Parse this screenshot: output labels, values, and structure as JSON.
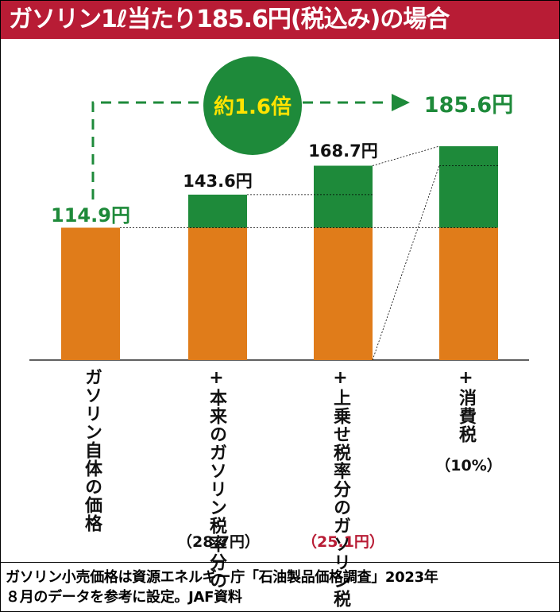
{
  "header": {
    "title": "ガソリン1ℓ当たり185.6円(税込み)の場合"
  },
  "chart_data": {
    "type": "bar",
    "stacked": true,
    "categories": [
      "ガソリン自体の価格",
      "+本来のガソリン税率分の",
      "+上乗せ税率分のガソリン税",
      "+消費税"
    ],
    "category_notes": [
      "",
      "（28.7円）",
      "（25.1円）",
      "（10%）"
    ],
    "totals": [
      114.9,
      143.6,
      168.7,
      185.6
    ],
    "total_labels": [
      "114.9円",
      "143.6円",
      "168.7円",
      "185.6円"
    ],
    "series": [
      {
        "values": [
          114.9,
          114.9,
          114.9,
          114.9
        ]
      },
      {
        "values": [
          0,
          28.7,
          53.8,
          70.7
        ]
      }
    ],
    "multiplier_label": "約1.6倍",
    "ylim": [
      0,
      185.6
    ],
    "colors": {
      "base": "#e07c1a",
      "tax": "#1e8a3a",
      "accent": "#b81c35",
      "dash": "#1e8a3a"
    }
  },
  "footer": {
    "line1": "ガソリン小売価格は資源エネルギー庁「石油製品価格調査」2023年",
    "line2": "８月のデータを参考に設定。JAF資料"
  }
}
